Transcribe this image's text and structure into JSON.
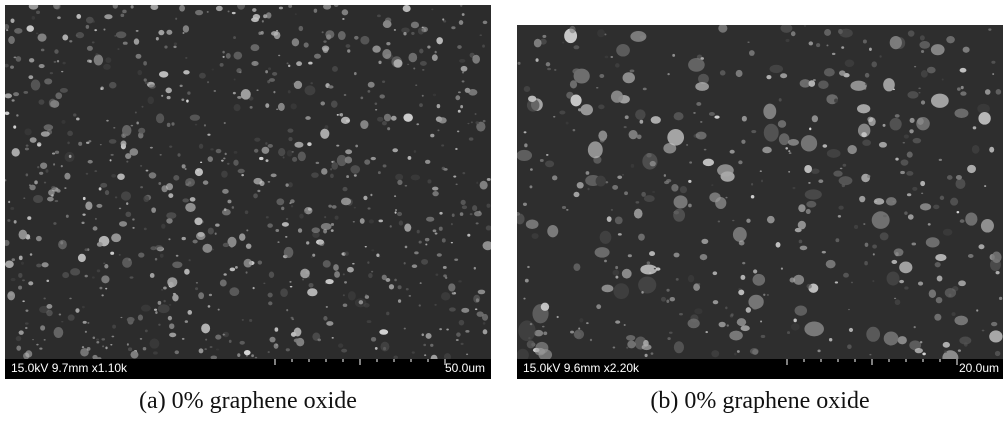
{
  "panels": [
    {
      "info": "15.0kV 9.7mm x1.10k",
      "scale": "50.0um",
      "caption": "(a) 0% graphene oxide"
    },
    {
      "info": "15.0kV 9.6mm x2.20k",
      "scale": "20.0um",
      "caption": "(b) 0% graphene oxide"
    }
  ]
}
